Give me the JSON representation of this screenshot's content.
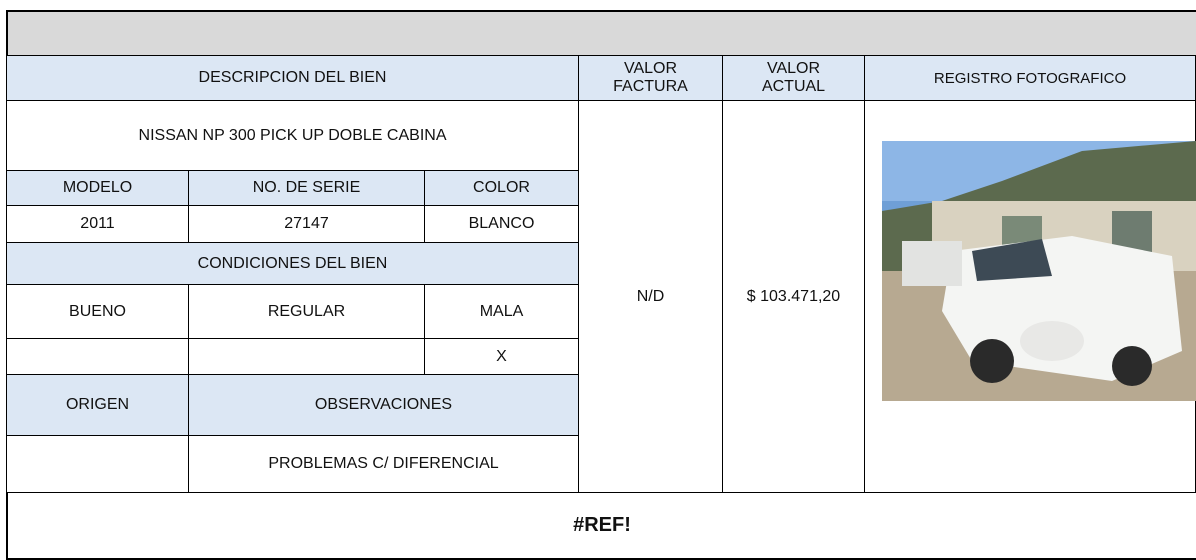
{
  "header": {
    "columns": [
      "DESCRIPCION DEL BIEN",
      "VALOR FACTURA",
      "VALOR ACTUAL",
      "REGISTRO FOTOGRAFICO"
    ]
  },
  "item": {
    "name": "NISSAN NP 300 PICK UP DOBLE CABINA",
    "labels": [
      "MODELO",
      "NO. DE SERIE",
      "COLOR"
    ],
    "values": [
      "2011",
      "27147",
      "BLANCO"
    ],
    "conditions_title": "CONDICIONES DEL BIEN",
    "conditions": [
      "BUENO",
      "REGULAR",
      "MALA"
    ],
    "condition_marks": {
      "mala": "X"
    },
    "origen_title": "ORIGEN",
    "observaciones_title": "OBSERVACIONES",
    "observaciones": "PROBLEMAS C/ DIFERENCIAL",
    "valor_factura": "N/D",
    "valor_actual": "$ 103.471,20"
  },
  "footer": "#REF!"
}
